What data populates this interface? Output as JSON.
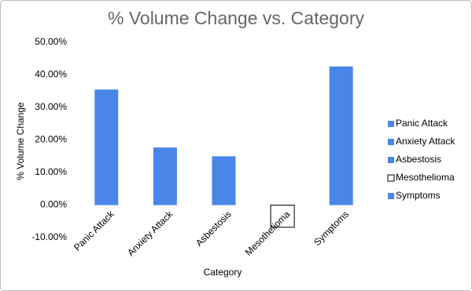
{
  "chart_data": {
    "type": "bar",
    "title": "% Volume Change vs. Category",
    "x_label": "Category",
    "y_label": "% Volume Change",
    "categories": [
      "Panic Attack",
      "Anxiety Attack",
      "Asbestosis",
      "Mesothelioma",
      "Symptoms"
    ],
    "values": [
      35.5,
      17.7,
      15,
      -6.8,
      42.6
    ],
    "colors": [
      "#4a86e8",
      "#4a86e8",
      "#4a86e8",
      "#ffffff",
      "#4a86e8"
    ],
    "ylim": [
      -10,
      50
    ],
    "yticks": [
      {
        "value": -10,
        "label": "-10.00%"
      },
      {
        "value": 0,
        "label": "0.00%"
      },
      {
        "value": 10,
        "label": "10.00%"
      },
      {
        "value": 20,
        "label": "20.00%"
      },
      {
        "value": 30,
        "label": "30.00%"
      },
      {
        "value": 40,
        "label": "40.00%"
      },
      {
        "value": 50,
        "label": "50.00%"
      }
    ],
    "grid": false,
    "legend": "right"
  }
}
